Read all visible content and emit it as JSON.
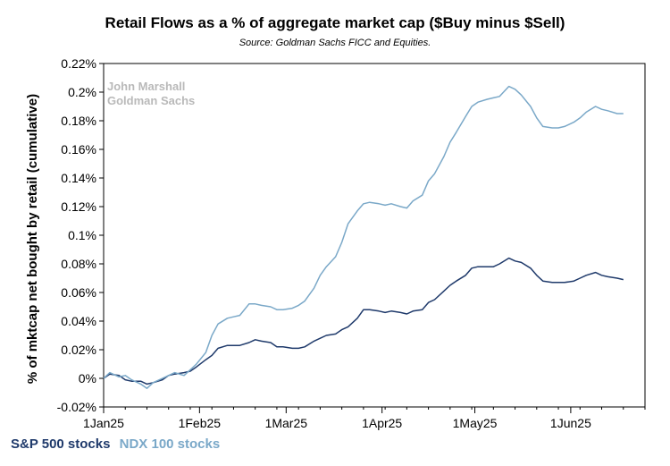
{
  "chart_data": {
    "type": "line",
    "title": "Retail Flows as a % of aggregate market cap ($Buy minus $Sell)",
    "subtitle": "Source: Goldman Sachs FICC and Equities.",
    "ylabel": "% of mktcap net bought by retail (cumulative)",
    "xlabel": "",
    "watermark": [
      "John Marshall",
      "Goldman Sachs"
    ],
    "ylim": [
      -0.02,
      0.22
    ],
    "yticks": [
      -0.02,
      0,
      0.02,
      0.04,
      0.06,
      0.08,
      0.1,
      0.12,
      0.14,
      0.16,
      0.18,
      0.2,
      0.22
    ],
    "ytick_labels": [
      "-0.02%",
      "0%",
      "0.02%",
      "0.04%",
      "0.06%",
      "0.08%",
      "0.1%",
      "0.12%",
      "0.14%",
      "0.16%",
      "0.18%",
      "0.2%",
      "0.22%"
    ],
    "xlim": [
      "2025-01-01",
      "2025-06-25"
    ],
    "xticks": [
      "2025-01-01",
      "2025-02-01",
      "2025-03-01",
      "2025-04-01",
      "2025-05-01",
      "2025-06-01"
    ],
    "xtick_labels": [
      "1Jan25",
      "1Feb25",
      "1Mar25",
      "1Apr25",
      "1May25",
      "1Jun25"
    ],
    "grid": false,
    "legend_position": "bottom-left",
    "series": [
      {
        "name": "S&P 500 stocks",
        "color": "#1f3a6b",
        "points": [
          [
            "2025-01-01",
            0.0
          ],
          [
            "2025-01-03",
            0.003
          ],
          [
            "2025-01-06",
            0.002
          ],
          [
            "2025-01-08",
            -0.001
          ],
          [
            "2025-01-10",
            -0.002
          ],
          [
            "2025-01-13",
            -0.002
          ],
          [
            "2025-01-15",
            -0.004
          ],
          [
            "2025-01-17",
            -0.003
          ],
          [
            "2025-01-20",
            -0.001
          ],
          [
            "2025-01-22",
            0.002
          ],
          [
            "2025-01-24",
            0.003
          ],
          [
            "2025-01-27",
            0.004
          ],
          [
            "2025-01-29",
            0.005
          ],
          [
            "2025-01-31",
            0.008
          ],
          [
            "2025-02-03",
            0.013
          ],
          [
            "2025-02-05",
            0.016
          ],
          [
            "2025-02-07",
            0.021
          ],
          [
            "2025-02-10",
            0.023
          ],
          [
            "2025-02-12",
            0.023
          ],
          [
            "2025-02-14",
            0.023
          ],
          [
            "2025-02-17",
            0.025
          ],
          [
            "2025-02-19",
            0.027
          ],
          [
            "2025-02-21",
            0.026
          ],
          [
            "2025-02-24",
            0.025
          ],
          [
            "2025-02-26",
            0.022
          ],
          [
            "2025-02-28",
            0.022
          ],
          [
            "2025-03-03",
            0.021
          ],
          [
            "2025-03-05",
            0.021
          ],
          [
            "2025-03-07",
            0.022
          ],
          [
            "2025-03-10",
            0.026
          ],
          [
            "2025-03-12",
            0.028
          ],
          [
            "2025-03-14",
            0.03
          ],
          [
            "2025-03-17",
            0.031
          ],
          [
            "2025-03-19",
            0.034
          ],
          [
            "2025-03-21",
            0.036
          ],
          [
            "2025-03-24",
            0.042
          ],
          [
            "2025-03-26",
            0.048
          ],
          [
            "2025-03-28",
            0.048
          ],
          [
            "2025-03-31",
            0.047
          ],
          [
            "2025-04-02",
            0.046
          ],
          [
            "2025-04-04",
            0.047
          ],
          [
            "2025-04-07",
            0.046
          ],
          [
            "2025-04-09",
            0.045
          ],
          [
            "2025-04-11",
            0.047
          ],
          [
            "2025-04-14",
            0.048
          ],
          [
            "2025-04-16",
            0.053
          ],
          [
            "2025-04-18",
            0.055
          ],
          [
            "2025-04-21",
            0.061
          ],
          [
            "2025-04-23",
            0.065
          ],
          [
            "2025-04-25",
            0.068
          ],
          [
            "2025-04-28",
            0.072
          ],
          [
            "2025-04-30",
            0.077
          ],
          [
            "2025-05-02",
            0.078
          ],
          [
            "2025-05-05",
            0.078
          ],
          [
            "2025-05-07",
            0.078
          ],
          [
            "2025-05-09",
            0.08
          ],
          [
            "2025-05-12",
            0.084
          ],
          [
            "2025-05-14",
            0.082
          ],
          [
            "2025-05-16",
            0.081
          ],
          [
            "2025-05-19",
            0.077
          ],
          [
            "2025-05-21",
            0.072
          ],
          [
            "2025-05-23",
            0.068
          ],
          [
            "2025-05-26",
            0.067
          ],
          [
            "2025-05-28",
            0.067
          ],
          [
            "2025-05-30",
            0.067
          ],
          [
            "2025-06-02",
            0.068
          ],
          [
            "2025-06-04",
            0.07
          ],
          [
            "2025-06-06",
            0.072
          ],
          [
            "2025-06-09",
            0.074
          ],
          [
            "2025-06-11",
            0.072
          ],
          [
            "2025-06-13",
            0.071
          ],
          [
            "2025-06-16",
            0.07
          ],
          [
            "2025-06-18",
            0.069
          ]
        ]
      },
      {
        "name": "NDX 100 stocks",
        "color": "#7aa8c8",
        "points": [
          [
            "2025-01-01",
            0.0
          ],
          [
            "2025-01-03",
            0.004
          ],
          [
            "2025-01-06",
            0.001
          ],
          [
            "2025-01-08",
            0.002
          ],
          [
            "2025-01-10",
            -0.001
          ],
          [
            "2025-01-13",
            -0.004
          ],
          [
            "2025-01-15",
            -0.007
          ],
          [
            "2025-01-17",
            -0.003
          ],
          [
            "2025-01-20",
            0.0
          ],
          [
            "2025-01-22",
            0.002
          ],
          [
            "2025-01-24",
            0.004
          ],
          [
            "2025-01-27",
            0.002
          ],
          [
            "2025-01-29",
            0.006
          ],
          [
            "2025-01-31",
            0.01
          ],
          [
            "2025-02-03",
            0.018
          ],
          [
            "2025-02-05",
            0.03
          ],
          [
            "2025-02-07",
            0.038
          ],
          [
            "2025-02-10",
            0.042
          ],
          [
            "2025-02-12",
            0.043
          ],
          [
            "2025-02-14",
            0.044
          ],
          [
            "2025-02-17",
            0.052
          ],
          [
            "2025-02-19",
            0.052
          ],
          [
            "2025-02-21",
            0.051
          ],
          [
            "2025-02-24",
            0.05
          ],
          [
            "2025-02-26",
            0.048
          ],
          [
            "2025-02-28",
            0.048
          ],
          [
            "2025-03-03",
            0.049
          ],
          [
            "2025-03-05",
            0.051
          ],
          [
            "2025-03-07",
            0.054
          ],
          [
            "2025-03-10",
            0.063
          ],
          [
            "2025-03-12",
            0.072
          ],
          [
            "2025-03-14",
            0.078
          ],
          [
            "2025-03-17",
            0.085
          ],
          [
            "2025-03-19",
            0.095
          ],
          [
            "2025-03-21",
            0.108
          ],
          [
            "2025-03-24",
            0.117
          ],
          [
            "2025-03-26",
            0.122
          ],
          [
            "2025-03-28",
            0.123
          ],
          [
            "2025-03-31",
            0.122
          ],
          [
            "2025-04-02",
            0.121
          ],
          [
            "2025-04-04",
            0.122
          ],
          [
            "2025-04-07",
            0.12
          ],
          [
            "2025-04-09",
            0.119
          ],
          [
            "2025-04-11",
            0.124
          ],
          [
            "2025-04-14",
            0.128
          ],
          [
            "2025-04-16",
            0.138
          ],
          [
            "2025-04-18",
            0.143
          ],
          [
            "2025-04-21",
            0.155
          ],
          [
            "2025-04-23",
            0.165
          ],
          [
            "2025-04-25",
            0.172
          ],
          [
            "2025-04-28",
            0.183
          ],
          [
            "2025-04-30",
            0.19
          ],
          [
            "2025-05-02",
            0.193
          ],
          [
            "2025-05-05",
            0.195
          ],
          [
            "2025-05-07",
            0.196
          ],
          [
            "2025-05-09",
            0.197
          ],
          [
            "2025-05-12",
            0.204
          ],
          [
            "2025-05-14",
            0.202
          ],
          [
            "2025-05-16",
            0.198
          ],
          [
            "2025-05-19",
            0.19
          ],
          [
            "2025-05-21",
            0.182
          ],
          [
            "2025-05-23",
            0.176
          ],
          [
            "2025-05-26",
            0.175
          ],
          [
            "2025-05-28",
            0.175
          ],
          [
            "2025-05-30",
            0.176
          ],
          [
            "2025-06-02",
            0.179
          ],
          [
            "2025-06-04",
            0.182
          ],
          [
            "2025-06-06",
            0.186
          ],
          [
            "2025-06-09",
            0.19
          ],
          [
            "2025-06-11",
            0.188
          ],
          [
            "2025-06-13",
            0.187
          ],
          [
            "2025-06-16",
            0.185
          ],
          [
            "2025-06-18",
            0.185
          ]
        ]
      }
    ]
  }
}
